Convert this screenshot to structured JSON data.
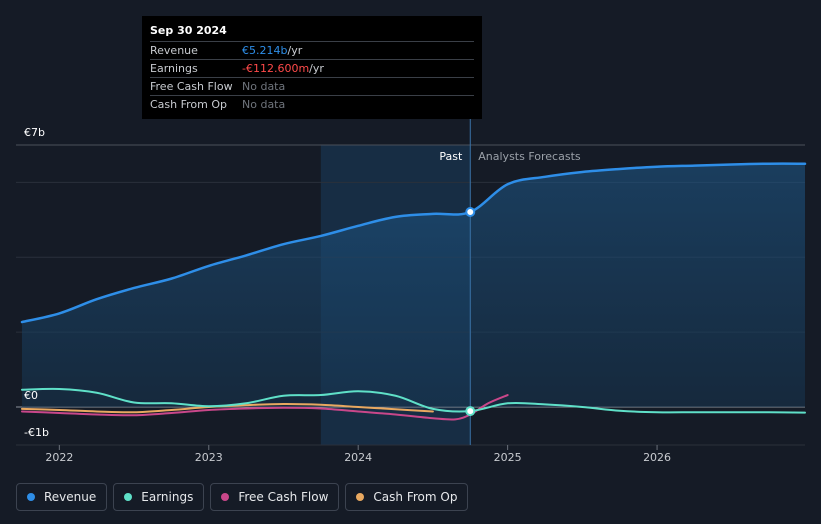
{
  "tooltip": {
    "date": "Sep 30 2024",
    "rows": [
      {
        "label": "Revenue",
        "value": "€5.214b",
        "suffix": " /yr",
        "color": "#2e8ee8"
      },
      {
        "label": "Earnings",
        "value": "-€112.600m",
        "suffix": " /yr",
        "color": "#ff4a4a"
      },
      {
        "label": "Free Cash Flow",
        "value": "No data",
        "suffix": "",
        "color": "#6f747c"
      },
      {
        "label": "Cash From Op",
        "value": "No data",
        "suffix": "",
        "color": "#6f747c"
      }
    ]
  },
  "labels": {
    "past": "Past",
    "forecast": "Analysts Forecasts"
  },
  "legend": [
    {
      "label": "Revenue",
      "color": "#2e8ee8"
    },
    {
      "label": "Earnings",
      "color": "#5fe0c8"
    },
    {
      "label": "Free Cash Flow",
      "color": "#c9478a"
    },
    {
      "label": "Cash From Op",
      "color": "#e8a860"
    }
  ],
  "chart_data": {
    "type": "line",
    "title": "",
    "xlabel": "",
    "ylabel": "",
    "unit": "€b",
    "xlim": [
      2021.71,
      2026.99
    ],
    "ylim": [
      -1,
      7
    ],
    "y_ticks": [
      {
        "value": 7,
        "label": "€7b"
      },
      {
        "value": 0,
        "label": "€0"
      },
      {
        "value": -1,
        "label": "-€1b"
      }
    ],
    "x_ticks": [
      {
        "value": 2022,
        "label": "2022"
      },
      {
        "value": 2023,
        "label": "2023"
      },
      {
        "value": 2024,
        "label": "2024"
      },
      {
        "value": 2025,
        "label": "2025"
      },
      {
        "value": 2026,
        "label": "2026"
      }
    ],
    "past_end": 2024.75,
    "highlight_start": 2023.75,
    "series": [
      {
        "name": "Revenue",
        "color": "#2e8ee8",
        "x": [
          2021.75,
          2022.0,
          2022.25,
          2022.5,
          2022.75,
          2023.0,
          2023.25,
          2023.5,
          2023.75,
          2024.0,
          2024.25,
          2024.5,
          2024.75,
          2025.0,
          2025.25,
          2025.5,
          2025.75,
          2026.0,
          2026.25,
          2026.5,
          2026.75,
          2026.99
        ],
        "y": [
          2.27,
          2.5,
          2.88,
          3.18,
          3.43,
          3.77,
          4.05,
          4.35,
          4.57,
          4.84,
          5.08,
          5.16,
          5.21,
          5.95,
          6.15,
          6.28,
          6.36,
          6.42,
          6.45,
          6.48,
          6.5,
          6.5
        ]
      },
      {
        "name": "Earnings",
        "color": "#5fe0c8",
        "x": [
          2021.75,
          2022.0,
          2022.25,
          2022.5,
          2022.75,
          2023.0,
          2023.25,
          2023.5,
          2023.75,
          2024.0,
          2024.25,
          2024.5,
          2024.75,
          2025.0,
          2025.25,
          2025.5,
          2025.75,
          2026.0,
          2026.25,
          2026.5,
          2026.75,
          2026.99
        ],
        "y": [
          0.46,
          0.48,
          0.38,
          0.12,
          0.1,
          0.02,
          0.1,
          0.3,
          0.32,
          0.42,
          0.3,
          -0.05,
          -0.11,
          0.1,
          0.07,
          0.0,
          -0.1,
          -0.14,
          -0.14,
          -0.14,
          -0.14,
          -0.15
        ]
      },
      {
        "name": "Free Cash Flow",
        "color": "#c9478a",
        "x": [
          2021.75,
          2022.0,
          2022.25,
          2022.5,
          2022.75,
          2023.0,
          2023.25,
          2023.5,
          2023.75,
          2024.0,
          2024.25,
          2024.5,
          2024.65,
          2024.75,
          2024.87,
          2025.0
        ],
        "y": [
          -0.12,
          -0.16,
          -0.2,
          -0.22,
          -0.16,
          -0.08,
          -0.04,
          -0.02,
          -0.04,
          -0.12,
          -0.2,
          -0.3,
          -0.33,
          -0.2,
          0.1,
          0.32
        ]
      },
      {
        "name": "Cash From Op",
        "color": "#e8a860",
        "x": [
          2021.75,
          2022.0,
          2022.25,
          2022.5,
          2022.75,
          2023.0,
          2023.25,
          2023.5,
          2023.75,
          2024.0,
          2024.25,
          2024.5
        ],
        "y": [
          -0.05,
          -0.08,
          -0.12,
          -0.14,
          -0.08,
          0.0,
          0.05,
          0.08,
          0.06,
          0.0,
          -0.06,
          -0.12
        ]
      }
    ]
  }
}
